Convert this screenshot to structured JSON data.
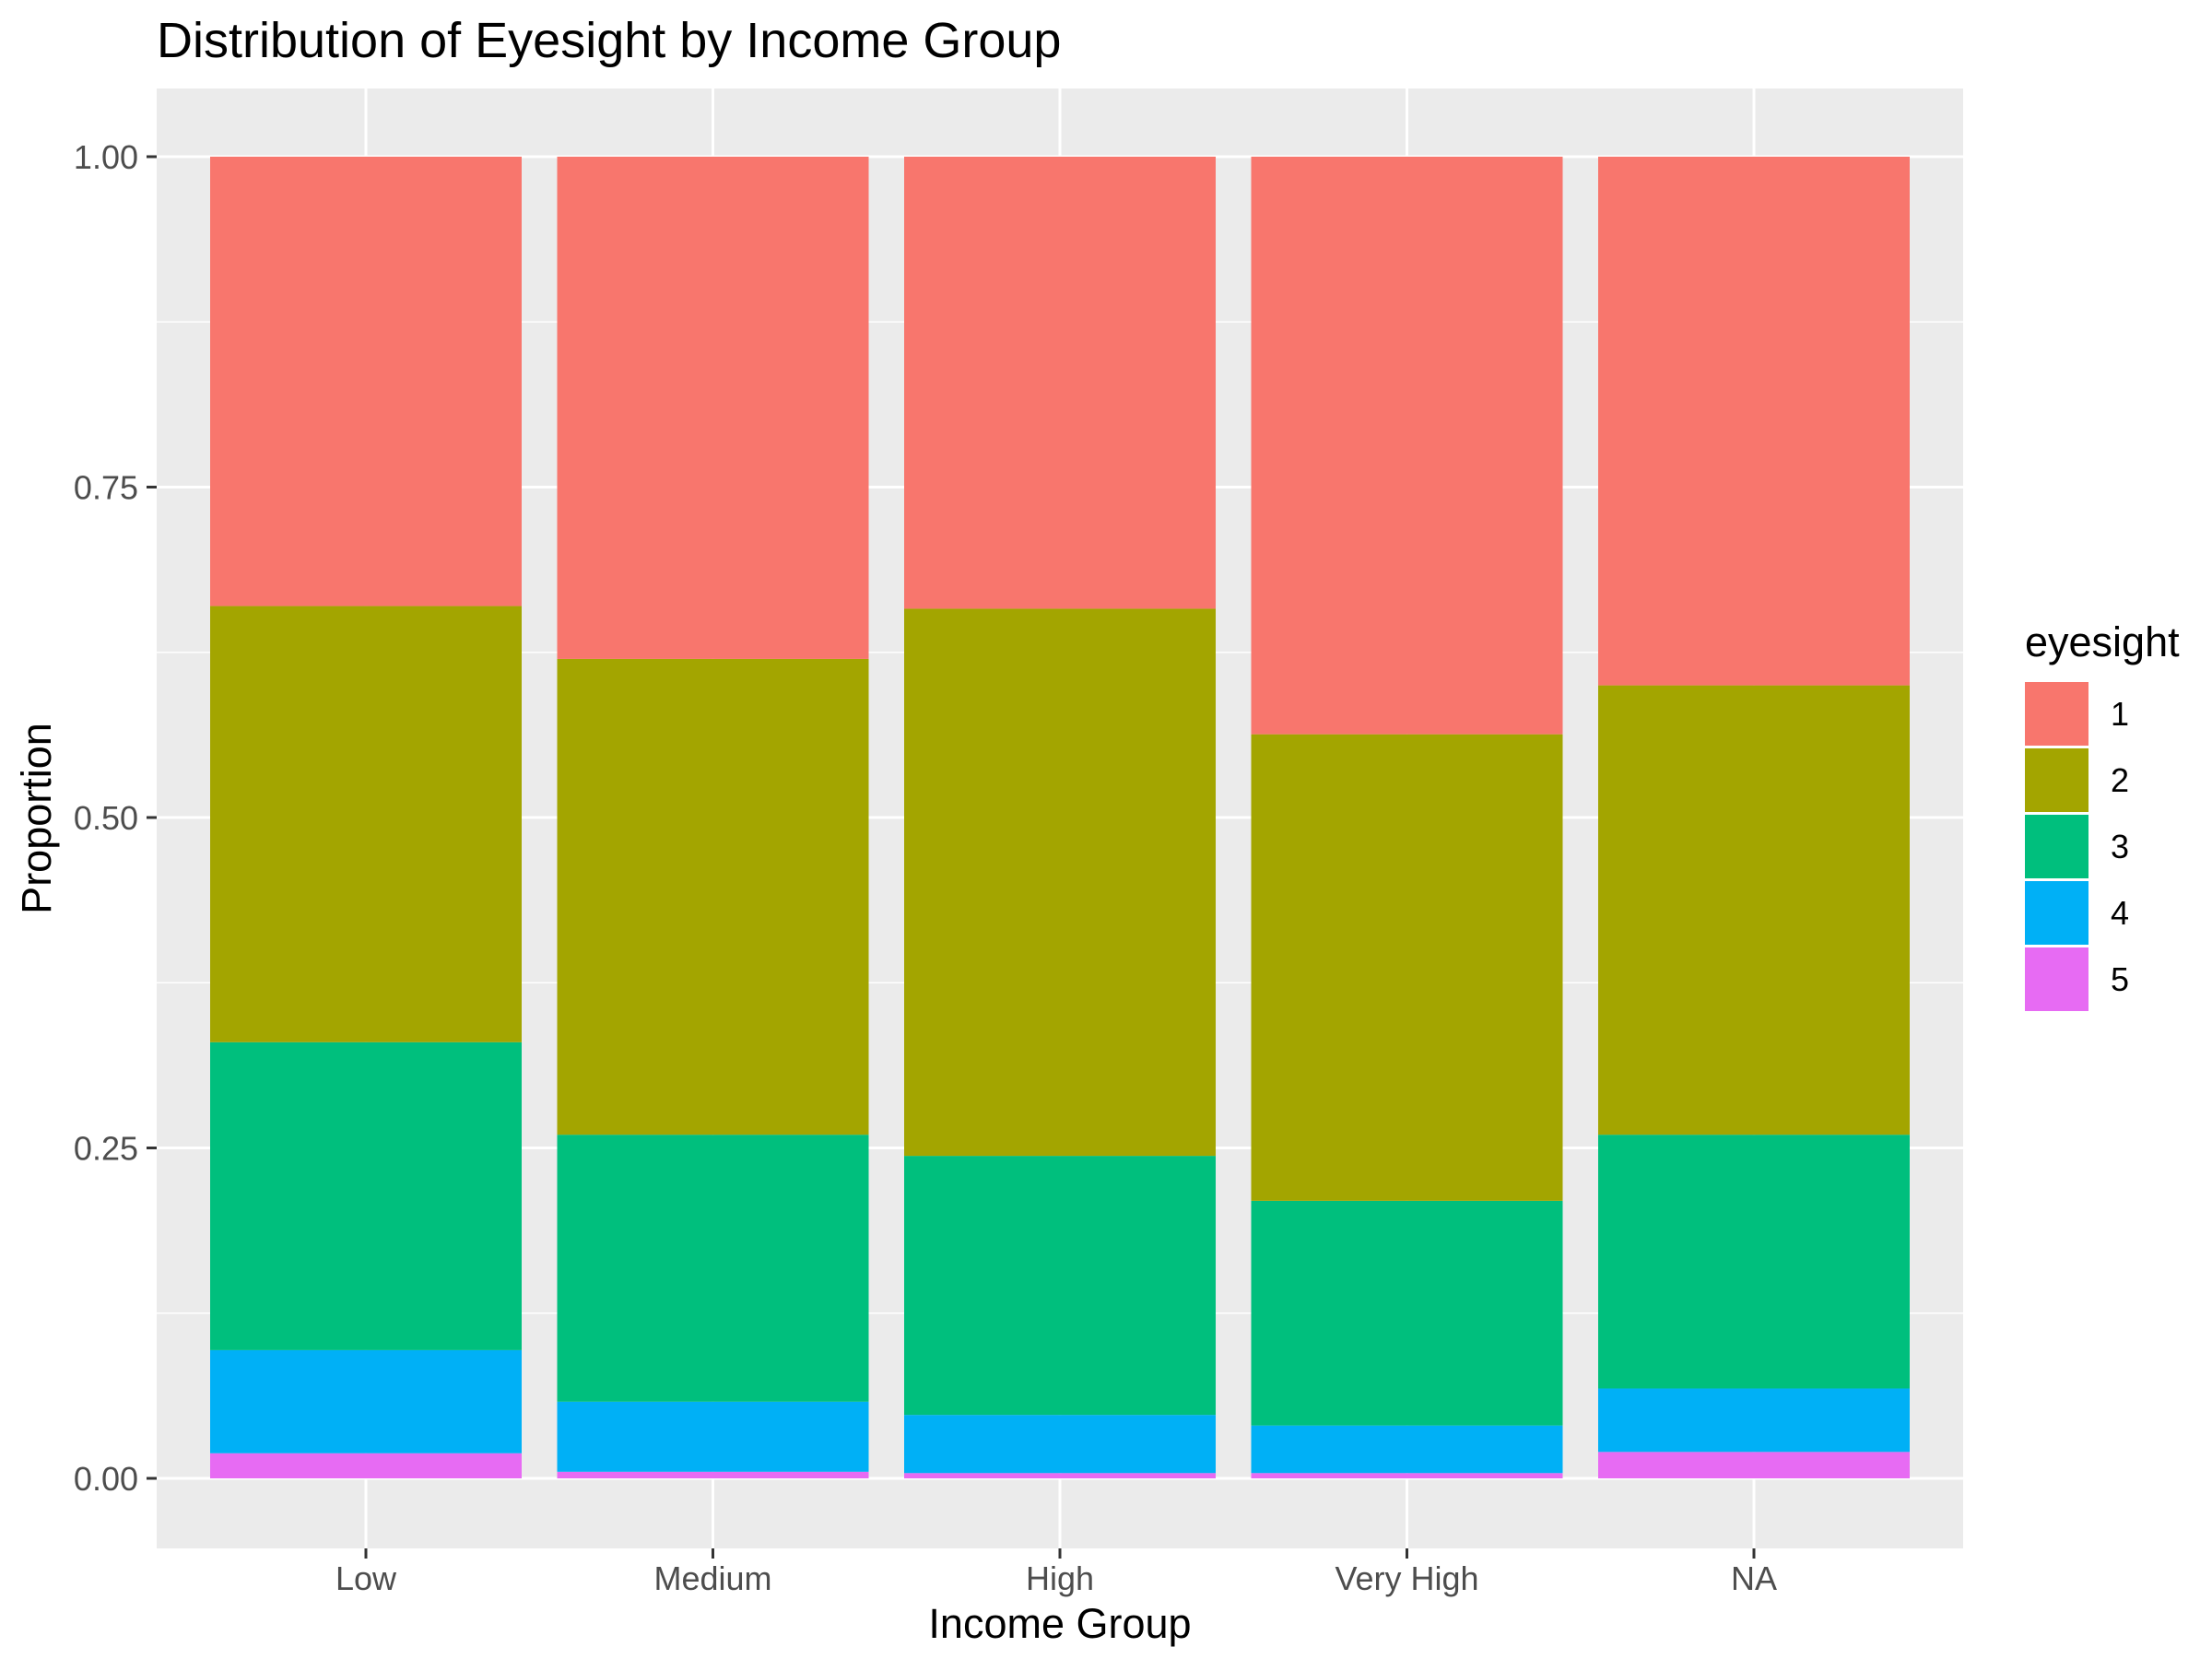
{
  "chart_data": {
    "type": "bar",
    "stacked": "fill",
    "title": "Distribution of Eyesight by Income Group",
    "xlabel": "Income Group",
    "ylabel": "Proportion",
    "ylim": [
      0,
      1
    ],
    "yticks": [
      "0.00",
      "0.25",
      "0.50",
      "0.75",
      "1.00"
    ],
    "ytick_values": [
      0,
      0.25,
      0.5,
      0.75,
      1.0
    ],
    "categories": [
      "Low",
      "Medium",
      "High",
      "Very High",
      "NA"
    ],
    "series": [
      {
        "name": "1",
        "color": "#F8766D",
        "values": [
          0.34,
          0.38,
          0.342,
          0.437,
          0.4
        ]
      },
      {
        "name": "2",
        "color": "#A3A500",
        "values": [
          0.33,
          0.36,
          0.414,
          0.353,
          0.34
        ]
      },
      {
        "name": "3",
        "color": "#00BF7D",
        "values": [
          0.233,
          0.202,
          0.196,
          0.17,
          0.192
        ]
      },
      {
        "name": "4",
        "color": "#00B0F6",
        "values": [
          0.078,
          0.053,
          0.044,
          0.036,
          0.048
        ]
      },
      {
        "name": "5",
        "color": "#E76BF3",
        "values": [
          0.019,
          0.005,
          0.004,
          0.004,
          0.02
        ]
      }
    ],
    "legend": {
      "title": "eyesight",
      "position": "right"
    },
    "grid": true,
    "panel_background": "#EBEBEB",
    "grid_color": "#FFFFFF"
  }
}
